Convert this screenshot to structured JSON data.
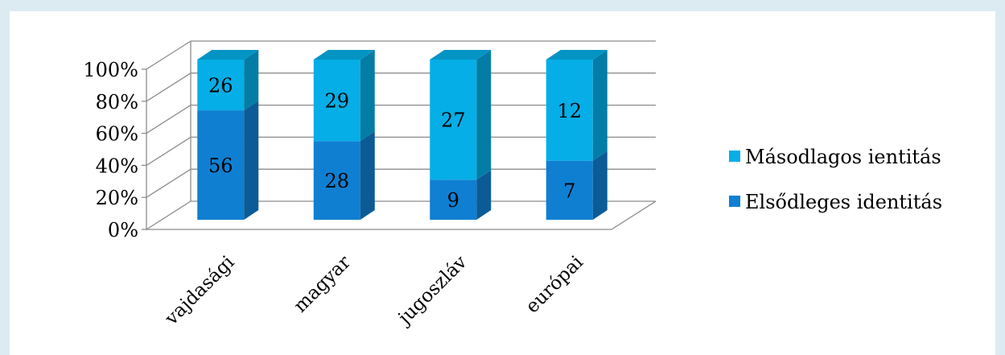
{
  "chart_data": {
    "type": "bar",
    "stacked": "percent",
    "projection": "3d",
    "categories": [
      "vajdasági",
      "magyar",
      "jugoszláv",
      "európai"
    ],
    "series": [
      {
        "name": "Elsődleges identitás",
        "values": [
          56,
          28,
          9,
          7
        ],
        "color": "#0f7fd2"
      },
      {
        "name": "Másodlagos ientitás",
        "values": [
          26,
          29,
          27,
          12
        ],
        "color": "#05aee6"
      }
    ],
    "y_ticks": [
      "0%",
      "20%",
      "40%",
      "60%",
      "80%",
      "100%"
    ],
    "ylim": [
      0,
      100
    ],
    "grid": true,
    "legend_position": "right"
  }
}
